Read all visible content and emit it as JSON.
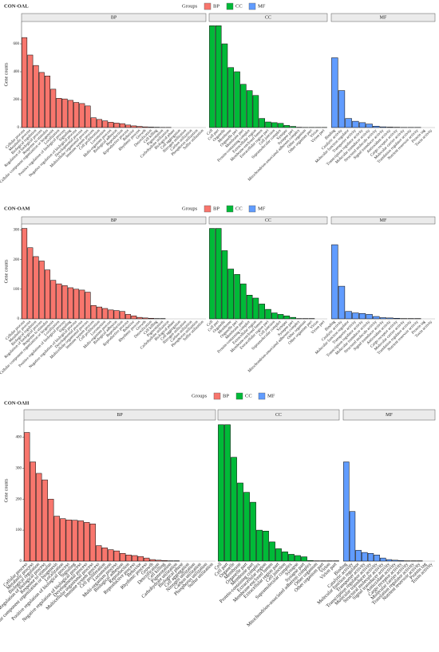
{
  "chart_data": [
    {
      "type": "bar",
      "title": "CON-OAL",
      "y_label": "Gene counts",
      "legend_title": "Groups",
      "ylim": [
        0,
        760
      ],
      "yticks": [
        0,
        200,
        400,
        600
      ],
      "series": [
        {
          "name": "BP",
          "color": "#f8766d",
          "categories": [
            "Cellular process",
            "Metabolic process",
            "Biological regulation",
            "Regulation of biological process",
            "Response to stimulus",
            "Cellular component organization or biogenesis",
            "Localization",
            "Positive regulation of biological process",
            "Signaling",
            "Negative regulation of biological process",
            "Developmental process",
            "Multicellular organismal process",
            "Immune system process",
            "Cell proliferation",
            "Locomotion",
            "Multi-organism process",
            "Biological adhesion",
            "Reproduction",
            "Reproductive process",
            "Behavior",
            "Rhythmic process",
            "Growth",
            "Detoxification",
            "Cell killing",
            "Pigmentation",
            "Carbohydrate utilization",
            "Biological phase",
            "Cell aggregation",
            "Nitrogen utilization",
            "Carbon utilization",
            "Phosphorus utilization",
            "Sulfur utilization"
          ],
          "values": [
            645,
            520,
            445,
            395,
            370,
            275,
            210,
            205,
            195,
            180,
            172,
            155,
            70,
            58,
            48,
            38,
            32,
            28,
            18,
            12,
            8,
            5,
            3,
            2,
            1,
            1,
            0,
            0,
            0,
            0,
            0,
            0
          ]
        },
        {
          "name": "CC",
          "color": "#00ba38",
          "categories": [
            "Cell",
            "Cell part",
            "Organelle",
            "Membrane",
            "Organelle part",
            "Membrane part",
            "Protein-containing complex",
            "Extracellular region",
            "Membrane-enclosed lumen",
            "Extracellular region part",
            "Cell junction",
            "Supramolecular complex",
            "Synapse",
            "Synapse part",
            "Mitochondrion-associated adherens complex",
            "Other organism",
            "Other organism part",
            "Virion",
            "Virion part"
          ],
          "values": [
            730,
            730,
            600,
            430,
            400,
            310,
            265,
            230,
            65,
            40,
            35,
            30,
            15,
            8,
            2,
            1,
            1,
            1,
            1
          ]
        },
        {
          "name": "MF",
          "color": "#619cff",
          "categories": [
            "Binding",
            "Catalytic activity",
            "Molecular function regulator",
            "Transporter activity",
            "Transcription regulator activity",
            "Molecular transducer activity",
            "Structural molecule activity",
            "Signal transducer activity",
            "Antioxidant activity",
            "Cargo receptor activity",
            "Molecular carrier activity",
            "Translation regulator activity",
            "Nutrient reservoir activity",
            "Protein tag",
            "Toxin activity"
          ],
          "values": [
            500,
            265,
            65,
            45,
            35,
            25,
            10,
            5,
            3,
            2,
            1,
            1,
            1,
            0,
            0
          ]
        }
      ]
    },
    {
      "type": "bar",
      "title": "CON-OAM",
      "y_label": "Gene counts",
      "legend_title": "Groups",
      "ylim": [
        0,
        320
      ],
      "yticks": [
        0,
        100,
        200,
        300
      ],
      "series": [
        {
          "name": "BP",
          "color": "#f8766d",
          "categories": [
            "Cellular process",
            "Metabolic process",
            "Biological regulation",
            "Regulation of biological process",
            "Response to stimulus",
            "Cellular component organization or biogenesis",
            "Localization",
            "Positive regulation of biological process",
            "Signaling",
            "Negative regulation of biological process",
            "Developmental process",
            "Multicellular organismal process",
            "Immune system process",
            "Cell proliferation",
            "Locomotion",
            "Multi-organism process",
            "Biological adhesion",
            "Reproduction",
            "Reproductive process",
            "Behavior",
            "Rhythmic process",
            "Growth",
            "Detoxification",
            "Cell killing",
            "Pigmentation",
            "Carbohydrate utilization",
            "Biological phase",
            "Cell aggregation",
            "Nitrogen utilization",
            "Carbon utilization",
            "Phosphorus utilization",
            "Sulfur utilization"
          ],
          "values": [
            305,
            240,
            210,
            195,
            165,
            130,
            118,
            112,
            105,
            100,
            97,
            90,
            45,
            40,
            35,
            30,
            28,
            25,
            15,
            10,
            5,
            3,
            2,
            1,
            1,
            0,
            0,
            0,
            0,
            0,
            0,
            0
          ]
        },
        {
          "name": "CC",
          "color": "#00ba38",
          "categories": [
            "Cell",
            "Cell part",
            "Organelle",
            "Membrane",
            "Organelle part",
            "Membrane part",
            "Protein-containing complex",
            "Extracellular region",
            "Membrane-enclosed lumen",
            "Extracellular region part",
            "Cell junction",
            "Supramolecular complex",
            "Synapse",
            "Synapse part",
            "Mitochondrion-associated adherens complex",
            "Other organism",
            "Other organism part",
            "Virion",
            "Virion part"
          ],
          "values": [
            305,
            305,
            230,
            168,
            150,
            118,
            80,
            70,
            50,
            32,
            20,
            15,
            10,
            5,
            1,
            1,
            1,
            0,
            0
          ]
        },
        {
          "name": "MF",
          "color": "#619cff",
          "categories": [
            "Binding",
            "Catalytic activity",
            "Molecular function regulator",
            "Transporter activity",
            "Transcription regulator activity",
            "Molecular transducer activity",
            "Structural molecule activity",
            "Signal transducer activity",
            "Antioxidant activity",
            "Cargo receptor activity",
            "Molecular carrier activity",
            "Translation regulator activity",
            "Nutrient reservoir activity",
            "Protein tag",
            "Toxin activity"
          ],
          "values": [
            250,
            110,
            25,
            20,
            18,
            15,
            8,
            4,
            3,
            2,
            1,
            1,
            1,
            0,
            0
          ]
        }
      ]
    },
    {
      "type": "bar",
      "title": "CON-OAH",
      "y_label": "Gene counts",
      "legend_title": "Groups",
      "ylim": [
        0,
        455
      ],
      "yticks": [
        0,
        100,
        200,
        300,
        400
      ],
      "series": [
        {
          "name": "BP",
          "color": "#f8766d",
          "categories": [
            "Cellular process",
            "Metabolic process",
            "Biological regulation",
            "Regulation of biological process",
            "Response to stimulus",
            "Cellular component organization or biogenesis",
            "Localization",
            "Positive regulation of biological process",
            "Signaling",
            "Negative regulation of biological process",
            "Developmental process",
            "Multicellular organismal process",
            "Immune system process",
            "Cell proliferation",
            "Locomotion",
            "Multi-organism process",
            "Biological adhesion",
            "Reproduction",
            "Reproductive process",
            "Behavior",
            "Rhythmic process",
            "Growth",
            "Detoxification",
            "Cell killing",
            "Pigmentation",
            "Carbohydrate utilization",
            "Biological phase",
            "Cell aggregation",
            "Nitrogen utilization",
            "Carbon utilization",
            "Phosphorus utilization",
            "Sulfur utilization"
          ],
          "values": [
            415,
            320,
            283,
            262,
            200,
            145,
            137,
            133,
            132,
            130,
            125,
            120,
            50,
            43,
            37,
            33,
            25,
            20,
            18,
            15,
            10,
            5,
            3,
            2,
            1,
            1,
            0,
            0,
            0,
            0,
            0,
            0
          ]
        },
        {
          "name": "CC",
          "color": "#00ba38",
          "categories": [
            "Cell",
            "Cell part",
            "Organelle",
            "Membrane",
            "Organelle part",
            "Membrane part",
            "Protein-containing complex",
            "Extracellular region",
            "Membrane-enclosed lumen",
            "Extracellular region part",
            "Cell junction",
            "Supramolecular complex",
            "Synapse",
            "Synapse part",
            "Mitochondrion-associated adherens complex",
            "Other organism",
            "Other organism part",
            "Virion",
            "Virion part"
          ],
          "values": [
            440,
            440,
            335,
            252,
            222,
            190,
            100,
            97,
            62,
            40,
            30,
            22,
            18,
            14,
            2,
            1,
            1,
            1,
            1
          ]
        },
        {
          "name": "MF",
          "color": "#619cff",
          "categories": [
            "Binding",
            "Catalytic activity",
            "Molecular function regulator",
            "Transporter activity",
            "Transcription regulator activity",
            "Molecular transducer activity",
            "Structural molecule activity",
            "Signal transducer activity",
            "Antioxidant activity",
            "Cargo receptor activity",
            "Molecular carrier activity",
            "Translation regulator activity",
            "Nutrient reservoir activity",
            "Protein tag",
            "Toxin activity"
          ],
          "values": [
            320,
            160,
            35,
            28,
            25,
            20,
            10,
            5,
            3,
            2,
            1,
            1,
            1,
            0,
            0
          ]
        }
      ]
    }
  ]
}
